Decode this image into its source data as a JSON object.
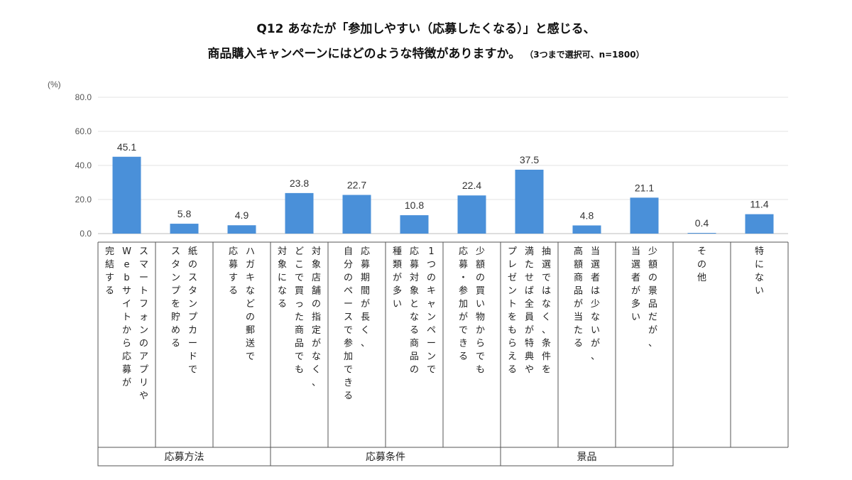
{
  "title_line1": "Q12 あなたが「参加しやすい（応募したくなる）」と感じる、",
  "title_line2": "商品購入キャンペーンにはどのような特徴がありますか。",
  "title_note": "（3つまで選択可、n=1800）",
  "chart_data": {
    "type": "bar",
    "title": "Q12 あなたが「参加しやすい（応募したくなる）」と感じる、商品購入キャンペーンにはどのような特徴がありますか。",
    "ylabel": "(%)",
    "ylim": [
      0,
      80
    ],
    "yticks": [
      "0.0",
      "20.0",
      "40.0",
      "60.0",
      "80.0"
    ],
    "grid": true,
    "bar_color": "#4a90d9",
    "categories": [
      [
        "スマートフォンのアプリや",
        "Webサイトから応募が",
        "完結する"
      ],
      [
        "紙のスタンプカードで",
        "スタンプを貯める"
      ],
      [
        "ハガキなどの郵送で",
        "応募する"
      ],
      [
        "対象店舗の指定がなく、",
        "どこで買った商品でも",
        "対象になる"
      ],
      [
        "応募期間が長く、",
        "自分のペースで参加できる"
      ],
      [
        "1つのキャンペーンで",
        "応募対象となる商品の",
        "種類が多い"
      ],
      [
        "少額の買い物からでも",
        "応募・参加ができる"
      ],
      [
        "抽選ではなく、条件を",
        "満たせば全員が特典や",
        "プレゼントをもらえる"
      ],
      [
        "当選者は少ないが、",
        "高額商品が当たる"
      ],
      [
        "少額の景品だが、",
        "当選者が多い"
      ],
      [
        "その他"
      ],
      [
        "特にない"
      ]
    ],
    "values": [
      45.1,
      5.8,
      4.9,
      23.8,
      22.7,
      10.8,
      22.4,
      37.5,
      4.8,
      21.1,
      0.4,
      11.4
    ],
    "value_labels": [
      "45.1",
      "5.8",
      "4.9",
      "23.8",
      "22.7",
      "10.8",
      "22.4",
      "37.5",
      "4.8",
      "21.1",
      "0.4",
      "11.4"
    ],
    "groups": [
      {
        "label": "応募方法",
        "start": 0,
        "end": 2
      },
      {
        "label": "応募条件",
        "start": 3,
        "end": 6
      },
      {
        "label": "景品",
        "start": 7,
        "end": 9
      }
    ]
  }
}
